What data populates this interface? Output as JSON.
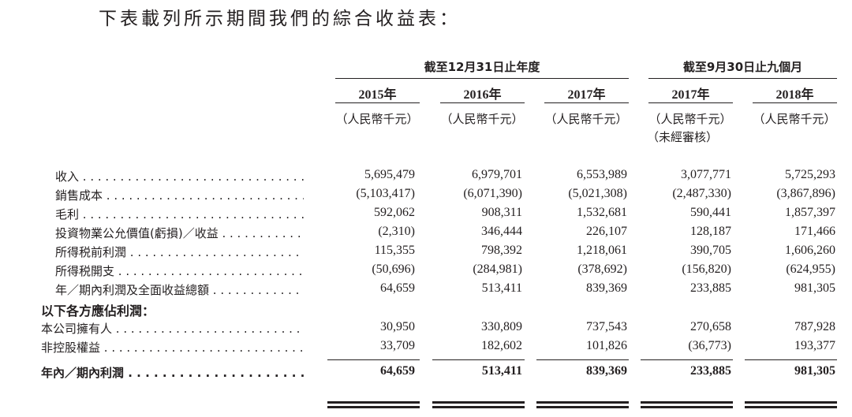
{
  "title": "下表載列所示期間我們的綜合收益表：",
  "groups": [
    "截至12月31日止年度",
    "截至9月30日止九個月"
  ],
  "columns": [
    {
      "year": "2015年",
      "unit": "（人民幣千元）"
    },
    {
      "year": "2016年",
      "unit": "（人民幣千元）"
    },
    {
      "year": "2017年",
      "unit": "（人民幣千元）"
    },
    {
      "year": "2017年",
      "unit": "（人民幣千元）",
      "note": "（未經審核）"
    },
    {
      "year": "2018年",
      "unit": "（人民幣千元）"
    }
  ],
  "rows": [
    {
      "label": "收入",
      "values": [
        "5,695,479",
        "6,979,701",
        "6,553,989",
        "3,077,771",
        "5,725,293"
      ]
    },
    {
      "label": "銷售成本",
      "values": [
        "(5,103,417)",
        "(6,071,390)",
        "(5,021,308)",
        "(2,487,330)",
        "(3,867,896)"
      ]
    },
    {
      "label": "毛利",
      "values": [
        "592,062",
        "908,311",
        "1,532,681",
        "590,441",
        "1,857,397"
      ]
    },
    {
      "label": "投資物業公允價值(虧損)／收益",
      "values": [
        "(2,310)",
        "346,444",
        "226,107",
        "128,187",
        "171,466"
      ]
    },
    {
      "label": "所得税前利潤",
      "values": [
        "115,355",
        "798,392",
        "1,218,061",
        "390,705",
        "1,606,260"
      ]
    },
    {
      "label": "所得税開支",
      "values": [
        "(50,696)",
        "(284,981)",
        "(378,692)",
        "(156,820)",
        "(624,955)"
      ]
    },
    {
      "label": "年／期內利潤及全面收益總額",
      "values": [
        "64,659",
        "513,411",
        "839,369",
        "233,885",
        "981,305"
      ]
    }
  ],
  "section_heading": "以下各方應佔利潤：",
  "attrib_rows": [
    {
      "label": "本公司擁有人",
      "values": [
        "30,950",
        "330,809",
        "737,543",
        "270,658",
        "787,928"
      ]
    },
    {
      "label": "非控股權益",
      "values": [
        "33,709",
        "182,602",
        "101,826",
        "(36,773)",
        "193,377"
      ]
    }
  ],
  "total_row": {
    "label": "年內／期內利潤",
    "values": [
      "64,659",
      "513,411",
      "839,369",
      "233,885",
      "981,305"
    ]
  }
}
